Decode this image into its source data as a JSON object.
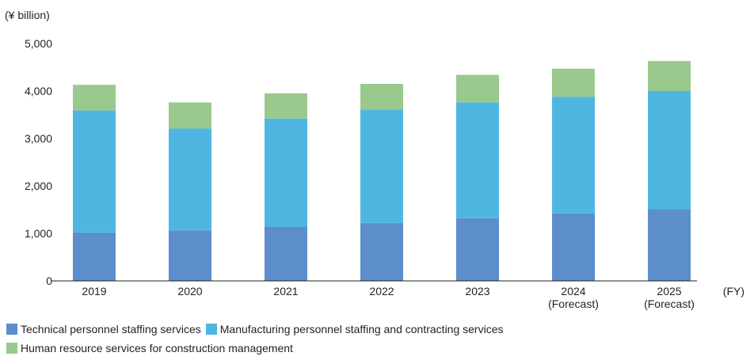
{
  "chart_data": {
    "type": "bar",
    "stacked": true,
    "unit_label": "(¥ billion)",
    "x_unit_label": "(FY)",
    "categories": [
      "2019",
      "2020",
      "2021",
      "2022",
      "2023",
      "2024",
      "2025"
    ],
    "category_sublabels": [
      "",
      "",
      "",
      "",
      "",
      "(Forecast)",
      "(Forecast)"
    ],
    "yticks": [
      "0",
      "1,000",
      "2,000",
      "3,000",
      "4,000",
      "5,000"
    ],
    "ylim": [
      0,
      5000
    ],
    "grid": false,
    "legend_position": "bottom-left",
    "series": [
      {
        "name": "Technical personnel staffing services",
        "color": "#5b8ecb",
        "values": [
          1020,
          1060,
          1140,
          1220,
          1320,
          1420,
          1510
        ]
      },
      {
        "name": "Manufacturing personnel staffing and contracting services",
        "color": "#4fb6e2",
        "values": [
          2570,
          2150,
          2280,
          2390,
          2440,
          2460,
          2490
        ]
      },
      {
        "name": "Human resource services for construction management",
        "color": "#9ac98e",
        "values": [
          540,
          550,
          530,
          540,
          580,
          590,
          630
        ]
      }
    ]
  }
}
